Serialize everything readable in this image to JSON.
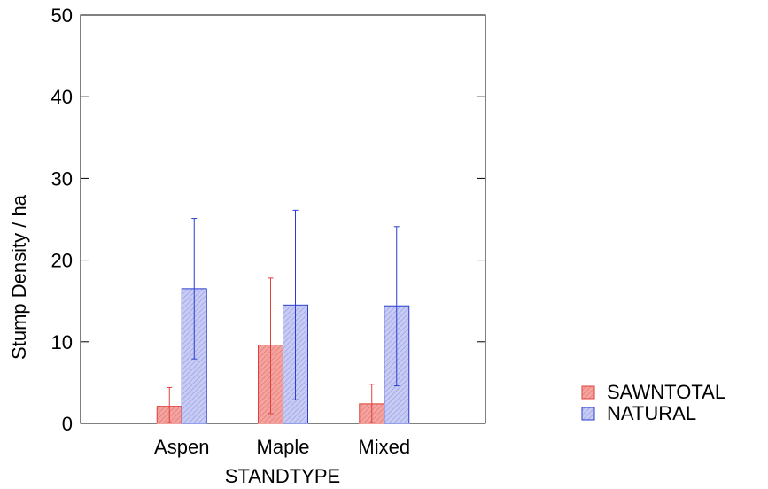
{
  "chart_data": {
    "type": "bar",
    "title": "",
    "xlabel": "STANDTYPE",
    "ylabel": "Stump Density / ha",
    "categories": [
      "Aspen",
      "Maple",
      "Mixed"
    ],
    "ylim": [
      0,
      50
    ],
    "yticks": [
      0,
      10,
      20,
      30,
      40,
      50
    ],
    "error_bars": true,
    "series": [
      {
        "name": "SAWNTOTAL",
        "color": "#f08080",
        "values": [
          2.1,
          9.6,
          2.4
        ],
        "err_low": [
          0.1,
          1.2,
          0.1
        ],
        "err_high": [
          4.4,
          17.8,
          4.8
        ]
      },
      {
        "name": "NATURAL",
        "color": "#b0b8f0",
        "values": [
          16.5,
          14.5,
          14.4
        ],
        "err_low": [
          7.9,
          2.9,
          4.6
        ],
        "err_high": [
          25.1,
          26.1,
          24.1
        ]
      }
    ],
    "legend_position": "right-bottom",
    "grid": false
  }
}
